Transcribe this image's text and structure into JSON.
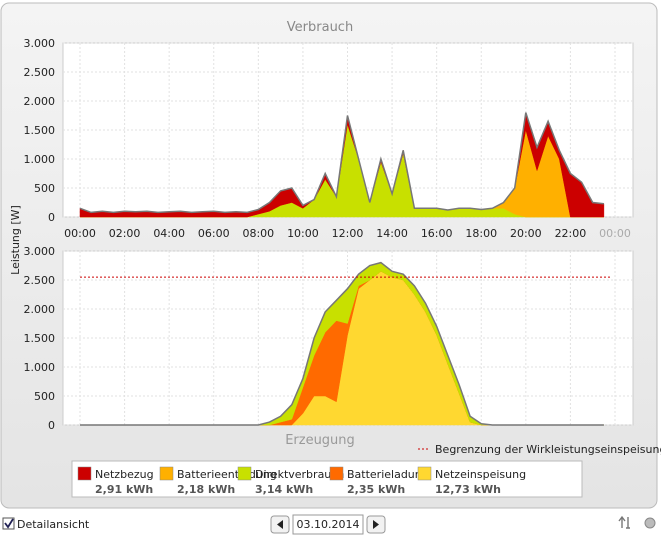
{
  "chart_data": [
    {
      "type": "area",
      "title": "Verbrauch",
      "ylabel": "Leistung [W]",
      "x": [
        0,
        0.5,
        1,
        1.5,
        2,
        2.5,
        3,
        3.5,
        4,
        4.5,
        5,
        5.5,
        6,
        6.5,
        7,
        7.5,
        8,
        8.5,
        9,
        9.5,
        10,
        10.5,
        11,
        11.5,
        12,
        12.5,
        13,
        13.5,
        14,
        14.5,
        15,
        15.5,
        16,
        16.5,
        17,
        17.5,
        18,
        18.5,
        19,
        19.5,
        20,
        20.5,
        21,
        21.5,
        22,
        22.5,
        23,
        23.5
      ],
      "xlim": [
        0,
        24
      ],
      "xticks": [
        {
          "value": 0,
          "label": "00:00"
        },
        {
          "value": 2,
          "label": "02:00"
        },
        {
          "value": 4,
          "label": "04:00"
        },
        {
          "value": 6,
          "label": "06:00"
        },
        {
          "value": 8,
          "label": "08:00"
        },
        {
          "value": 10,
          "label": "10:00"
        },
        {
          "value": 12,
          "label": "12:00"
        },
        {
          "value": 14,
          "label": "14:00"
        },
        {
          "value": 16,
          "label": "16:00"
        },
        {
          "value": 18,
          "label": "18:00"
        },
        {
          "value": 20,
          "label": "20:00"
        },
        {
          "value": 22,
          "label": "22:00"
        },
        {
          "value": 24,
          "label": "00:00"
        }
      ],
      "ylim": [
        0,
        3000
      ],
      "yticks": [
        0,
        500,
        {
          "value": 1000,
          "label": "1.000"
        },
        {
          "value": 1500,
          "label": "1.500"
        },
        {
          "value": 2000,
          "label": "2.000"
        },
        {
          "value": 2500,
          "label": "2.500"
        },
        {
          "value": 3000,
          "label": "3.000"
        }
      ],
      "grid": true,
      "series": [
        {
          "name": "Direktverbrauch",
          "color": "#c8e000",
          "total": "3,14 kWh",
          "values": [
            0,
            0,
            0,
            0,
            0,
            0,
            0,
            0,
            0,
            0,
            0,
            0,
            0,
            0,
            0,
            0,
            50,
            100,
            200,
            250,
            150,
            300,
            650,
            350,
            1600,
            1000,
            250,
            950,
            400,
            1100,
            150,
            150,
            150,
            120,
            150,
            150,
            130,
            150,
            150,
            50,
            0,
            0,
            0,
            0,
            0,
            0,
            0,
            0
          ]
        },
        {
          "name": "Batterieentladung",
          "color": "#ffb000",
          "total": "2,18 kWh",
          "values": [
            0,
            0,
            0,
            0,
            0,
            0,
            0,
            0,
            0,
            0,
            0,
            0,
            0,
            0,
            0,
            0,
            0,
            0,
            0,
            0,
            0,
            0,
            0,
            0,
            0,
            0,
            0,
            0,
            0,
            0,
            0,
            0,
            0,
            0,
            0,
            0,
            0,
            0,
            100,
            450,
            1500,
            800,
            1400,
            1000,
            0,
            0,
            0,
            0
          ]
        },
        {
          "name": "Netzbezug",
          "color": "#cc0000",
          "total": "2,91 kWh",
          "values": [
            150,
            80,
            100,
            80,
            100,
            90,
            100,
            80,
            90,
            100,
            80,
            90,
            100,
            80,
            90,
            80,
            80,
            150,
            250,
            250,
            50,
            0,
            100,
            0,
            150,
            0,
            0,
            50,
            0,
            50,
            0,
            0,
            0,
            0,
            0,
            0,
            0,
            0,
            0,
            0,
            300,
            400,
            250,
            150,
            750,
            600,
            250,
            230
          ]
        }
      ]
    },
    {
      "type": "area",
      "title": "Erzeugung",
      "x": [
        0,
        0.5,
        1,
        1.5,
        2,
        2.5,
        3,
        3.5,
        4,
        4.5,
        5,
        5.5,
        6,
        6.5,
        7,
        7.5,
        8,
        8.5,
        9,
        9.5,
        10,
        10.5,
        11,
        11.5,
        12,
        12.5,
        13,
        13.5,
        14,
        14.5,
        15,
        15.5,
        16,
        16.5,
        17,
        17.5,
        18,
        18.5,
        19,
        19.5,
        20,
        20.5,
        21,
        21.5,
        22,
        22.5,
        23,
        23.5
      ],
      "xlim": [
        0,
        24
      ],
      "ylim": [
        0,
        3000
      ],
      "yticks": [
        0,
        500,
        {
          "value": 1000,
          "label": "1.000"
        },
        {
          "value": 1500,
          "label": "1.500"
        },
        {
          "value": 2000,
          "label": "2.000"
        },
        {
          "value": 2500,
          "label": "2.500"
        },
        {
          "value": 3000,
          "label": "3.000"
        }
      ],
      "grid": true,
      "limit": {
        "value": 2550,
        "label": "Begrenzung der Wirkleistungseinspeisung",
        "color": "#cc0000"
      },
      "series": [
        {
          "name": "Netzeinspeisung",
          "color": "#ffd830",
          "total": "12,73 kWh",
          "values": [
            0,
            0,
            0,
            0,
            0,
            0,
            0,
            0,
            0,
            0,
            0,
            0,
            0,
            0,
            0,
            0,
            0,
            0,
            0,
            0,
            200,
            500,
            500,
            400,
            1550,
            2350,
            2500,
            2650,
            2550,
            2500,
            2250,
            1950,
            1550,
            1050,
            550,
            50,
            0,
            0,
            0,
            0,
            0,
            0,
            0,
            0,
            0,
            0,
            0,
            0
          ]
        },
        {
          "name": "Batterieladung",
          "color": "#ff6a00",
          "total": "2,35 kWh",
          "values": [
            0,
            0,
            0,
            0,
            0,
            0,
            0,
            0,
            0,
            0,
            0,
            0,
            0,
            0,
            0,
            0,
            0,
            0,
            50,
            100,
            450,
            700,
            1100,
            1400,
            200,
            50,
            0,
            0,
            0,
            0,
            0,
            0,
            0,
            0,
            0,
            0,
            0,
            0,
            0,
            0,
            0,
            0,
            0,
            0,
            0,
            0,
            0,
            0
          ]
        },
        {
          "name": "Direktverbrauch",
          "color": "#c8e000",
          "values": [
            0,
            0,
            0,
            0,
            0,
            0,
            0,
            0,
            0,
            0,
            0,
            0,
            0,
            0,
            0,
            0,
            0,
            50,
            100,
            250,
            150,
            300,
            350,
            350,
            600,
            200,
            250,
            150,
            100,
            100,
            150,
            150,
            150,
            150,
            150,
            100,
            20,
            0,
            0,
            0,
            0,
            0,
            0,
            0,
            0,
            0,
            0,
            0
          ]
        }
      ]
    }
  ],
  "legend_order": [
    "chart_data.0.series.2",
    "chart_data.0.series.1",
    "chart_data.0.series.0",
    "chart_data.1.series.1",
    "chart_data.1.series.0"
  ],
  "footer": {
    "checkbox": "Detailansicht",
    "date": "03.10.2014"
  }
}
